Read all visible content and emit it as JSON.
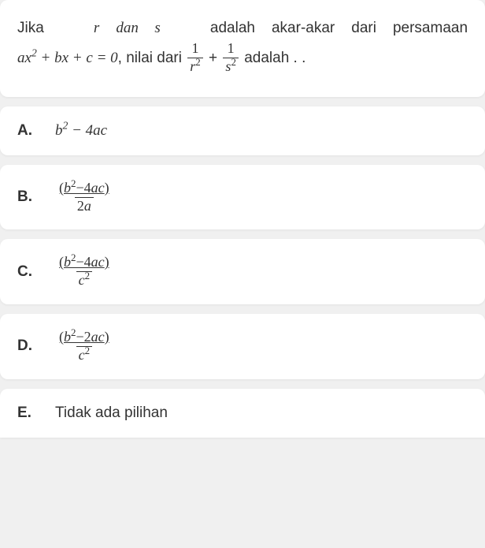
{
  "question": {
    "line1_pre": "Jika",
    "var_r": "r",
    "dan": "dan",
    "var_s": "s",
    "line1_post": "adalah akar-akar dari persamaan",
    "eq_lhs": "ax² + bx + c = 0",
    "nilai_dari": ", nilai dari",
    "frac1_num": "1",
    "frac1_den": "r²",
    "plus": "+",
    "frac2_num": "1",
    "frac2_den": "s²",
    "adalah": "adalah . ."
  },
  "options": {
    "A": {
      "letter": "A.",
      "type": "expr",
      "text": "b² − 4ac"
    },
    "B": {
      "letter": "B.",
      "type": "frac",
      "num": "(b²−4ac)",
      "den": "2a",
      "num_underline": true
    },
    "C": {
      "letter": "C.",
      "type": "frac",
      "num": "(b²−4ac)",
      "den": "c²",
      "num_underline": true
    },
    "D": {
      "letter": "D.",
      "type": "frac",
      "num": "(b²−2ac)",
      "den": "c²",
      "num_underline": true
    },
    "E": {
      "letter": "E.",
      "type": "text",
      "text": "Tidak ada pilihan"
    }
  },
  "styling": {
    "background": "#f0f0f0",
    "card_bg": "#ffffff",
    "text_color": "#333333",
    "card_radius": 10,
    "font_size_body": 19,
    "font_family_math": "Times New Roman"
  }
}
